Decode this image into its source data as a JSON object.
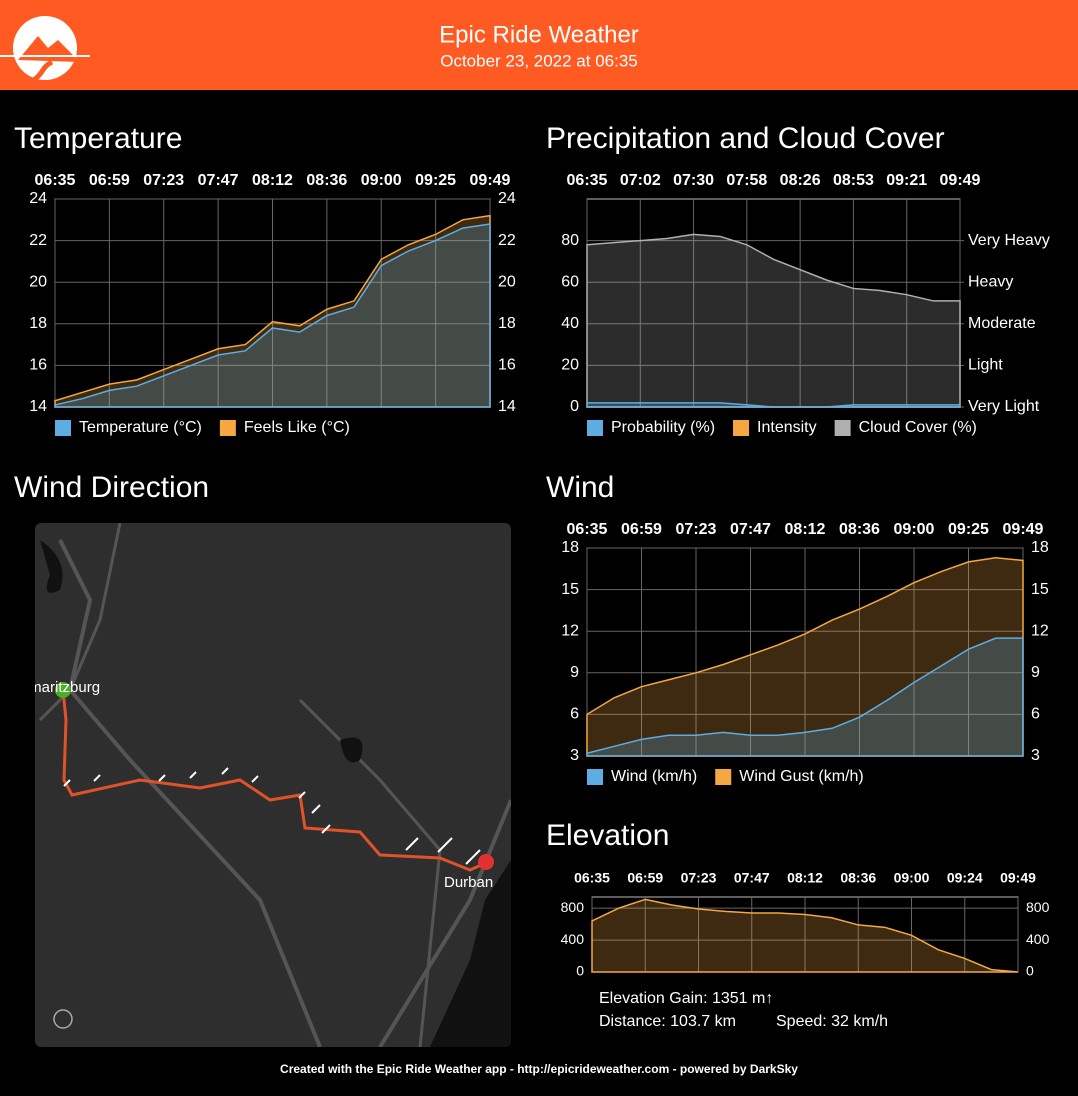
{
  "header": {
    "title": "Epic Ride Weather",
    "subtitle": "October 23, 2022 at 06:35"
  },
  "chart_data": [
    {
      "type": "area",
      "title": "Temperature",
      "mirror_yticks": true,
      "categories": [
        "06:35",
        null,
        "06:59",
        null,
        "07:23",
        null,
        "07:47",
        null,
        "08:12",
        null,
        "08:36",
        null,
        "09:00",
        null,
        "09:25",
        null,
        "09:49"
      ],
      "series": [
        {
          "name": "Temperature (°C)",
          "color": "#5dade2",
          "values": [
            14.1,
            14.4,
            14.8,
            15.0,
            15.5,
            16.0,
            16.5,
            16.7,
            17.8,
            17.6,
            18.4,
            18.8,
            20.8,
            21.5,
            22.0,
            22.6,
            22.8
          ]
        },
        {
          "name": "Feels Like (°C)",
          "color": "#f5a742",
          "values": [
            14.3,
            14.7,
            15.1,
            15.3,
            15.8,
            16.3,
            16.8,
            17.0,
            18.1,
            17.9,
            18.7,
            19.1,
            21.1,
            21.8,
            22.3,
            23.0,
            23.2
          ]
        }
      ],
      "ylim": [
        14,
        24
      ],
      "yticks": [
        14,
        16,
        18,
        20,
        22,
        24
      ],
      "grid": true
    },
    {
      "type": "area",
      "title": "Precipitation and Cloud Cover",
      "categories": [
        "06:35",
        null,
        "07:02",
        null,
        "07:30",
        null,
        "07:58",
        null,
        "08:26",
        null,
        "08:53",
        null,
        "09:21",
        null,
        "09:49"
      ],
      "series": [
        {
          "name": "Probability (%)",
          "color": "#5dade2",
          "values": [
            2,
            2,
            2,
            2,
            2,
            2,
            1,
            0,
            0,
            0,
            1,
            1,
            1,
            1,
            1
          ]
        },
        {
          "name": "Intensity",
          "color": "#f5a742",
          "axis": "y2",
          "values": [
            0,
            0,
            0,
            0,
            0,
            0,
            0,
            0,
            0,
            0,
            0,
            0,
            0,
            0,
            0
          ]
        },
        {
          "name": "Cloud Cover (%)",
          "color": "#b0b0b0",
          "values": [
            78,
            79,
            80,
            81,
            83,
            82,
            78,
            71,
            66,
            61,
            57,
            56,
            54,
            51,
            51
          ]
        }
      ],
      "ylim": [
        0,
        100
      ],
      "yticks": [
        0,
        20,
        40,
        60,
        80
      ],
      "y2lim": [
        0,
        100
      ],
      "y2ticks": [
        {
          "value": 0,
          "label": "Very Light"
        },
        {
          "value": 20,
          "label": "Light"
        },
        {
          "value": 40,
          "label": "Moderate"
        },
        {
          "value": 60,
          "label": "Heavy"
        },
        {
          "value": 80,
          "label": "Very Heavy"
        }
      ],
      "grid": true
    },
    {
      "type": "area",
      "title": "Wind",
      "mirror_yticks": true,
      "categories": [
        "06:35",
        null,
        "06:59",
        null,
        "07:23",
        null,
        "07:47",
        null,
        "08:12",
        null,
        "08:36",
        null,
        "09:00",
        null,
        "09:25",
        null,
        "09:49"
      ],
      "series": [
        {
          "name": "Wind (km/h)",
          "color": "#5dade2",
          "values": [
            3.2,
            3.7,
            4.2,
            4.5,
            4.5,
            4.7,
            4.5,
            4.5,
            4.7,
            5.0,
            5.8,
            7.0,
            8.3,
            9.5,
            10.7,
            11.5,
            11.5
          ]
        },
        {
          "name": "Wind Gust (km/h)",
          "color": "#f5a742",
          "values": [
            6.0,
            7.2,
            8.0,
            8.5,
            9.0,
            9.6,
            10.3,
            11.0,
            11.8,
            12.8,
            13.6,
            14.5,
            15.5,
            16.3,
            17.0,
            17.3,
            17.1
          ]
        }
      ],
      "ylim": [
        3,
        18
      ],
      "yticks": [
        3,
        6,
        9,
        12,
        15,
        18
      ],
      "grid": true
    },
    {
      "type": "area",
      "title": "Elevation",
      "mirror_yticks": true,
      "color": "#f5a742",
      "categories": [
        "06:35",
        null,
        "06:59",
        null,
        "07:23",
        null,
        "07:47",
        null,
        "08:12",
        null,
        "08:36",
        null,
        "09:00",
        null,
        "09:24",
        null,
        "09:49"
      ],
      "values": [
        640,
        800,
        910,
        840,
        790,
        760,
        740,
        740,
        720,
        680,
        590,
        560,
        460,
        280,
        170,
        30,
        0
      ],
      "ylim": [
        0,
        940
      ],
      "yticks": [
        0,
        400,
        800
      ],
      "grid": true
    }
  ],
  "elevation_stats": {
    "gain": "Elevation Gain: 1351 m↑",
    "distance": "Distance: 103.7 km",
    "speed": "Speed: 32 km/h"
  },
  "wind_direction": {
    "title": "Wind Direction",
    "labels": [
      "Pietermaritzburg",
      "Durban"
    ]
  },
  "footer": "Created with the Epic Ride Weather app - http://epicrideweather.com - powered by DarkSky"
}
